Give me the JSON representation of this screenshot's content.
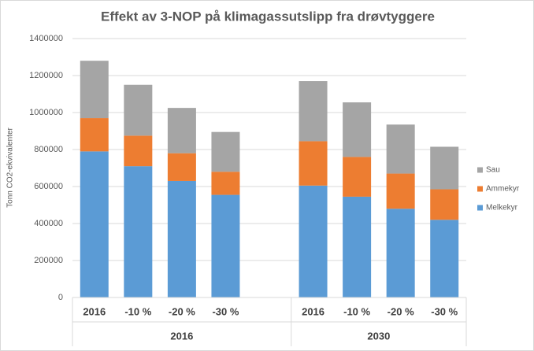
{
  "chart_data": {
    "type": "stacked_bar",
    "title": "Effekt av 3-NOP på klimagassutslipp fra drøvtyggere",
    "y_label": "Tonn CO2-ekvivalenter",
    "categories": [
      "2016",
      "-10 %",
      "-20 %",
      "-30 %",
      null,
      "2016",
      "-10 %",
      "-20 %",
      "-30 %"
    ],
    "groups": [
      {
        "label": "2016",
        "size": 5
      },
      {
        "label": "2030",
        "size": 4
      }
    ],
    "series": [
      {
        "name": "Melkekyr",
        "color": "#5b9bd5",
        "values": [
          790000,
          710000,
          630000,
          555000,
          null,
          605000,
          545000,
          480000,
          420000
        ]
      },
      {
        "name": "Ammekyr",
        "color": "#ed7d31",
        "values": [
          180000,
          165000,
          150000,
          125000,
          null,
          240000,
          215000,
          190000,
          165000
        ]
      },
      {
        "name": "Sau",
        "color": "#a5a5a5",
        "values": [
          310000,
          275000,
          245000,
          215000,
          null,
          325000,
          295000,
          265000,
          230000
        ]
      }
    ],
    "ylim": [
      0,
      1400000
    ],
    "yticks": [
      0,
      200000,
      400000,
      600000,
      800000,
      1000000,
      1200000,
      1400000
    ],
    "grid": true,
    "legend": "right"
  }
}
